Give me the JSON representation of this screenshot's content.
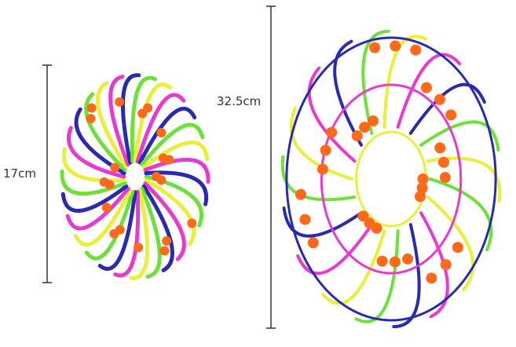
{
  "small_ball": {
    "size_label": "17cm"
  },
  "large_ball": {
    "size_label": "32.5cm"
  },
  "colors": {
    "green": "#6ee03a",
    "yellow": "#e8f03a",
    "pink": "#e83ad0",
    "blue": "#2a2ab0",
    "orange": "#ff6a1a",
    "dimension_line": "#333333"
  }
}
